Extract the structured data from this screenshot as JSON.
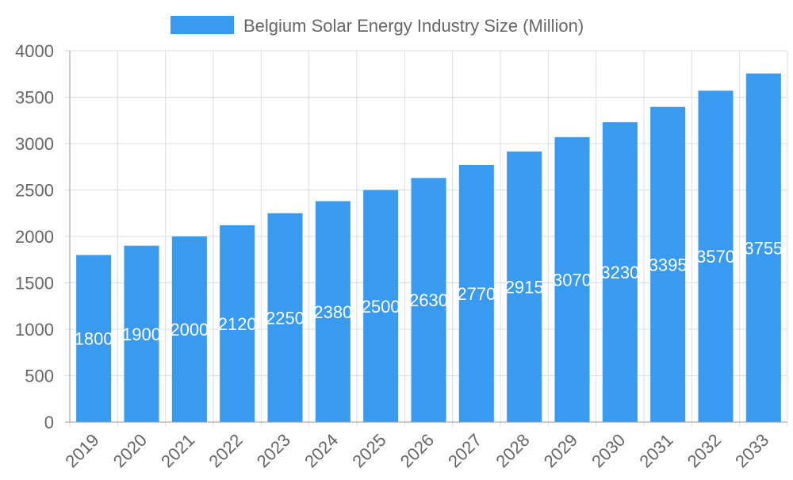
{
  "chart_data": {
    "type": "bar",
    "title": "",
    "xlabel": "",
    "ylabel": "",
    "legend": {
      "position": "top",
      "entries": [
        "Belgium Solar Energy Industry Size (Million)"
      ]
    },
    "categories": [
      "2019",
      "2020",
      "2021",
      "2022",
      "2023",
      "2024",
      "2025",
      "2026",
      "2027",
      "2028",
      "2029",
      "2030",
      "2031",
      "2032",
      "2033"
    ],
    "series": [
      {
        "name": "Belgium Solar Energy Industry Size (Million)",
        "values": [
          1800,
          1900,
          2000,
          2120,
          2250,
          2380,
          2500,
          2630,
          2770,
          2915,
          3070,
          3230,
          3395,
          3570,
          3755
        ],
        "color": "#399bf0"
      }
    ],
    "ylim": [
      0,
      4000
    ],
    "yticks": [
      0,
      500,
      1000,
      1500,
      2000,
      2500,
      3000,
      3500,
      4000
    ],
    "grid": true,
    "data_labels": "center, white"
  }
}
